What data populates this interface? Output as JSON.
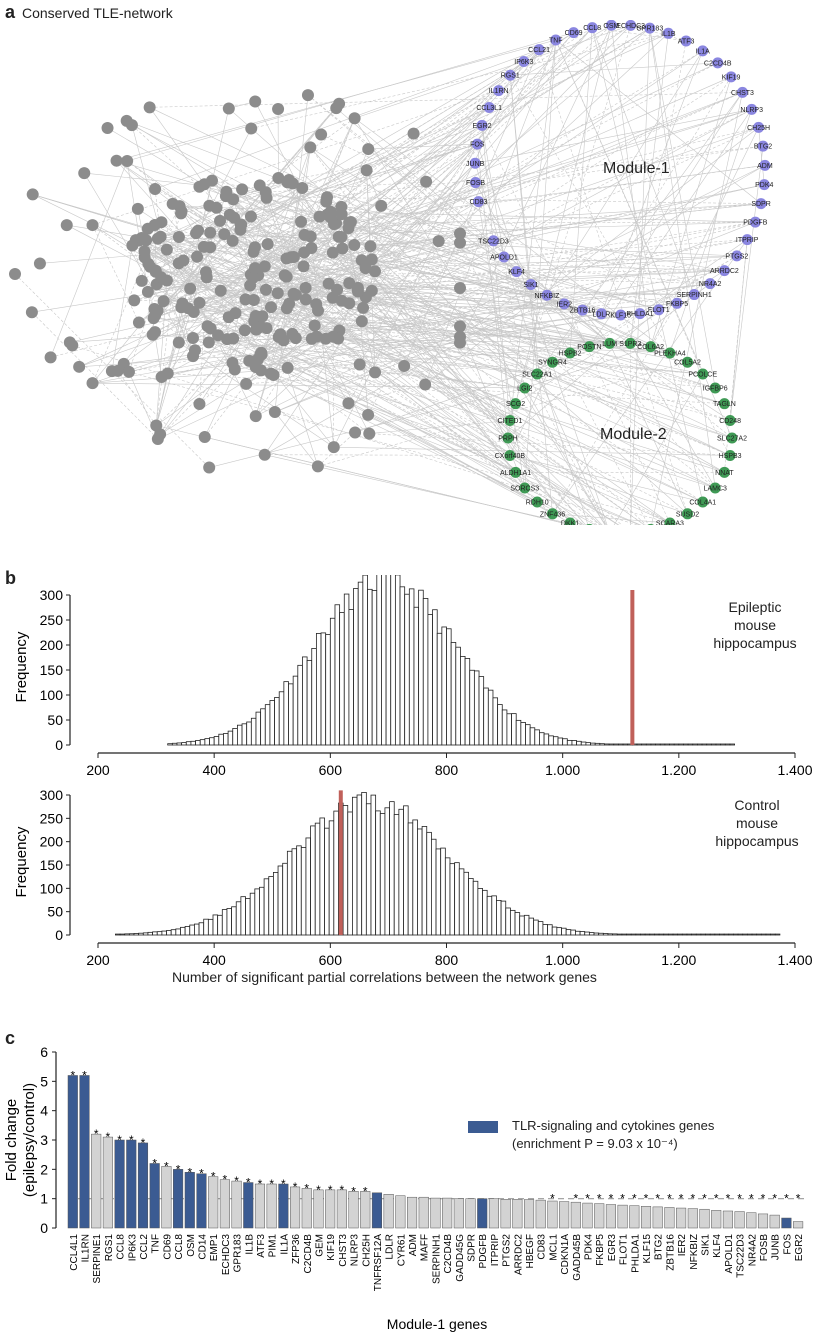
{
  "panel_a": {
    "letter": "a",
    "title": "Conserved TLE-network",
    "module1_label": "Module-1",
    "module2_label": "Module-2",
    "module1_genes": [
      "CD83",
      "FOSB",
      "JUNB",
      "FOS",
      "EGR2",
      "CCL3L1",
      "IL1RN",
      "RGS1",
      "IP6K3",
      "CCL21",
      "TNF",
      "CD69",
      "CCL8",
      "OSM",
      "ECHDC3",
      "GPR183",
      "IL1B",
      "ATF3",
      "IL1A",
      "C2CD4B",
      "KIF19",
      "CHST3",
      "NLRP3",
      "CH25H",
      "BTG2",
      "ADM",
      "PDK4",
      "SDPR",
      "PDGFB",
      "ITPRIP",
      "PTGS2",
      "ARRDC2",
      "NR4A2",
      "SERPINH1",
      "FKBP5",
      "FLOT1",
      "PHLDA1",
      "KLF15",
      "LDLR",
      "ZBTB16",
      "IER2",
      "NFKBIZ",
      "SIK1",
      "KLF4",
      "APOLD1",
      "TSC22D3"
    ],
    "module2_genes": [
      "SLC27A2",
      "HSPB3",
      "NNAT",
      "LAMC3",
      "COL4A1",
      "SUSD2",
      "SCARA3",
      "SMAD6",
      "MGP",
      "GPX3",
      "LPL",
      "DKK1",
      "ZNF436",
      "RDH10",
      "SORCS3",
      "ALDH1A1",
      "CXorf40B",
      "PRPH",
      "CITED1",
      "SCG2",
      "LGI2",
      "SLC22A1",
      "SYNGR4",
      "HSPB2",
      "POSTN",
      "LUM",
      "S1PR3",
      "COL6A2",
      "PLEKHA4",
      "COL5A2",
      "PCOLCE",
      "IGFBP6",
      "TAGLN",
      "CD248"
    ]
  },
  "panel_b": {
    "letter": "b",
    "epileptic_label": [
      "Epileptic",
      "mouse",
      "hippocampus"
    ],
    "control_label": [
      "Control",
      "mouse",
      "hippocampus"
    ],
    "xlabel": "Number of significant partial correlations between the network genes",
    "ylabel": "Frequency",
    "line_color": "#c0605a"
  },
  "chart_data": [
    {
      "type": "bar",
      "title": "",
      "xlabel": "",
      "ylabel": "Frequency",
      "xlim": [
        200,
        1400
      ],
      "ylim": [
        0,
        300
      ],
      "xticks": [
        "200",
        "400",
        "600",
        "800",
        "1,000",
        "1,200",
        "1,400"
      ],
      "yticks": [
        "0",
        "50",
        "100",
        "150",
        "200",
        "250",
        "300"
      ],
      "histogram_center": 690,
      "histogram_sd": 120,
      "histogram_peak": 330,
      "histogram_range": [
        320,
        1290
      ],
      "observed_value": 1120
    },
    {
      "type": "bar",
      "title": "",
      "xlabel": "Number of significant partial correlations between the network genes",
      "ylabel": "Frequency",
      "xlim": [
        200,
        1400
      ],
      "ylim": [
        0,
        300
      ],
      "xticks": [
        "200",
        "400",
        "600",
        "800",
        "1,000",
        "1,200",
        "1,400"
      ],
      "yticks": [
        "0",
        "50",
        "100",
        "150",
        "200",
        "250",
        "300"
      ],
      "histogram_center": 665,
      "histogram_sd": 135,
      "histogram_peak": 285,
      "histogram_range": [
        230,
        1370
      ],
      "observed_value": 618
    },
    {
      "type": "bar",
      "title": "",
      "xlabel": "Module-1 genes",
      "ylabel": "Fold change (epilepsy/control)",
      "ylim": [
        0,
        6
      ],
      "yticks": [
        "0",
        "1",
        "2",
        "3",
        "4",
        "5",
        "6"
      ],
      "categories": [
        "CCL4L1",
        "IL1RN",
        "SERPINE1",
        "RGS1",
        "CCL8",
        "IP6K3",
        "CCL2",
        "TNF",
        "CD69",
        "CCL8",
        "OSM",
        "CD14",
        "EMP1",
        "ECHDC3",
        "GPR183",
        "IL1B",
        "ATF3",
        "PIM1",
        "IL1A",
        "ZFP36",
        "C2CD4B",
        "GEM",
        "KIF19",
        "CHST3",
        "NLRP3",
        "CH25H",
        "TNFRSF12A",
        "LDLR",
        "CYR61",
        "ADM",
        "MAFF",
        "SERPINH1",
        "C2CD4B",
        "GADD45G",
        "SDPR",
        "PDGFB",
        "ITPRIP",
        "PTGS2",
        "ARRDC2",
        "HBEGF",
        "CD83",
        "MCL1",
        "CDKN1A",
        "GADD45B",
        "PDK4",
        "FKBP5",
        "EGR3",
        "FLOT1",
        "PHLDA1",
        "KLF15",
        "BTG2",
        "ZBTB16",
        "IER2",
        "NFKBIZ",
        "SIK1",
        "KLF4",
        "APOLD1",
        "TSC22D3",
        "NR4A2",
        "FOSB",
        "JUNB",
        "FOS",
        "EGR2"
      ],
      "values": [
        5.2,
        5.2,
        3.2,
        3.1,
        3.0,
        3.0,
        2.9,
        2.2,
        2.1,
        2.0,
        1.9,
        1.85,
        1.75,
        1.65,
        1.6,
        1.55,
        1.5,
        1.5,
        1.5,
        1.4,
        1.35,
        1.3,
        1.3,
        1.3,
        1.25,
        1.25,
        1.2,
        1.15,
        1.1,
        1.05,
        1.05,
        1.02,
        1.02,
        1.0,
        1.0,
        1.0,
        1.0,
        0.98,
        0.98,
        0.97,
        0.95,
        0.92,
        0.9,
        0.88,
        0.85,
        0.83,
        0.8,
        0.78,
        0.76,
        0.74,
        0.72,
        0.7,
        0.68,
        0.66,
        0.64,
        0.6,
        0.58,
        0.56,
        0.52,
        0.48,
        0.44,
        0.34,
        0.22
      ],
      "tlr_genes": [
        0,
        1,
        4,
        5,
        6,
        7,
        9,
        10,
        11,
        15,
        18,
        26,
        35,
        61
      ],
      "significant": [
        0,
        1,
        2,
        3,
        4,
        5,
        6,
        7,
        8,
        9,
        10,
        11,
        12,
        13,
        14,
        15,
        16,
        17,
        18,
        19,
        20,
        21,
        22,
        23,
        24,
        25,
        41,
        43,
        44,
        45,
        46,
        47,
        48,
        49,
        50,
        51,
        52,
        53,
        54,
        55,
        56,
        57,
        58,
        59,
        60,
        61,
        62
      ],
      "legend": [
        "TLR-signaling and cytokines genes"
      ],
      "reference_line": 1
    }
  ],
  "panel_c": {
    "letter": "c",
    "legend_line1": "TLR-signaling and cytokines genes",
    "legend_line2": "(enrichment P = 9.03 x 10⁻⁴)",
    "ylabel_line1": "Fold change",
    "ylabel_line2": "(epilepsy/control)",
    "xlabel": "Module-1 genes",
    "tlr_color": "#3b5b92",
    "other_color": "#d3d3d3",
    "star": "*"
  }
}
